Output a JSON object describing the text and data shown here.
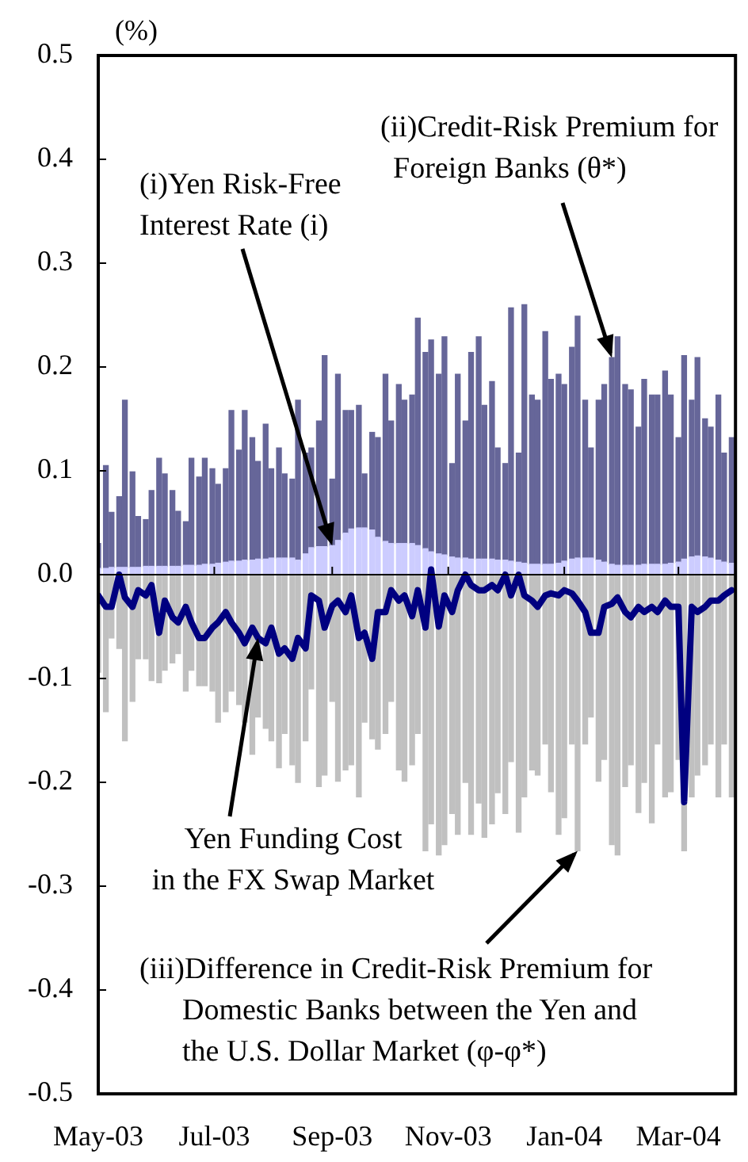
{
  "chart_data": {
    "type": "bar",
    "stacked": true,
    "ylabel": "(%)",
    "annotations": [
      {
        "text": "(i)Yen Risk-Free Interest Rate (i)",
        "x": "2003-09-01",
        "y": 0.028
      },
      {
        "text": "(ii)Credit-Risk Premium for Foreign Banks (θ*)",
        "x": "2004-01-26",
        "y": 0.209
      },
      {
        "text": "Yen Funding Cost in the FX Swap Market",
        "x": "2003-07-24",
        "y": -0.061
      },
      {
        "text": "(iii)Difference in Credit-Risk Premium for Domestic Banks between the Yen and the U.S. Dollar Market (φ-φ*)",
        "x": "2004-01-08",
        "y": -0.266
      }
    ],
    "x": [
      "2003-05-01",
      "2003-05-05",
      "2003-05-08",
      "2003-05-12",
      "2003-05-15",
      "2003-05-19",
      "2003-05-22",
      "2003-05-26",
      "2003-05-29",
      "2003-06-02",
      "2003-06-05",
      "2003-06-09",
      "2003-06-12",
      "2003-06-16",
      "2003-06-19",
      "2003-06-23",
      "2003-06-26",
      "2003-06-30",
      "2003-07-03",
      "2003-07-07",
      "2003-07-10",
      "2003-07-14",
      "2003-07-17",
      "2003-07-21",
      "2003-07-24",
      "2003-07-28",
      "2003-07-31",
      "2003-08-04",
      "2003-08-07",
      "2003-08-11",
      "2003-08-14",
      "2003-08-18",
      "2003-08-21",
      "2003-08-25",
      "2003-08-28",
      "2003-09-01",
      "2003-09-04",
      "2003-09-08",
      "2003-09-11",
      "2003-09-15",
      "2003-09-18",
      "2003-09-22",
      "2003-09-25",
      "2003-09-29",
      "2003-10-02",
      "2003-10-06",
      "2003-10-09",
      "2003-10-13",
      "2003-10-16",
      "2003-10-20",
      "2003-10-23",
      "2003-10-27",
      "2003-10-30",
      "2003-11-03",
      "2003-11-06",
      "2003-11-10",
      "2003-11-13",
      "2003-11-17",
      "2003-11-20",
      "2003-11-24",
      "2003-11-27",
      "2003-12-01",
      "2003-12-04",
      "2003-12-08",
      "2003-12-11",
      "2003-12-15",
      "2003-12-18",
      "2003-12-22",
      "2003-12-25",
      "2003-12-29",
      "2004-01-01",
      "2004-01-05",
      "2004-01-08",
      "2004-01-12",
      "2004-01-15",
      "2004-01-19",
      "2004-01-22",
      "2004-01-26",
      "2004-01-29",
      "2004-02-02",
      "2004-02-05",
      "2004-02-09",
      "2004-02-12",
      "2004-02-16",
      "2004-02-19",
      "2004-02-23",
      "2004-02-26",
      "2004-03-01",
      "2004-03-04",
      "2004-03-08",
      "2004-03-11",
      "2004-03-15",
      "2004-03-18",
      "2004-03-22",
      "2004-03-25",
      "2004-03-29"
    ],
    "series": [
      {
        "color": "#ccccff",
        "values": [
          0.006,
          0.006,
          0.007,
          0.007,
          0.007,
          0.007,
          0.007,
          0.008,
          0.008,
          0.008,
          0.008,
          0.008,
          0.008,
          0.009,
          0.009,
          0.009,
          0.01,
          0.01,
          0.011,
          0.012,
          0.013,
          0.013,
          0.014,
          0.014,
          0.015,
          0.015,
          0.016,
          0.016,
          0.016,
          0.016,
          0.014,
          0.02,
          0.026,
          0.027,
          0.027,
          0.028,
          0.033,
          0.04,
          0.044,
          0.045,
          0.045,
          0.043,
          0.036,
          0.032,
          0.03,
          0.03,
          0.03,
          0.03,
          0.028,
          0.025,
          0.022,
          0.02,
          0.019,
          0.017,
          0.016,
          0.016,
          0.015,
          0.015,
          0.015,
          0.015,
          0.014,
          0.014,
          0.013,
          0.012,
          0.011,
          0.01,
          0.01,
          0.01,
          0.01,
          0.011,
          0.013,
          0.015,
          0.016,
          0.016,
          0.016,
          0.014,
          0.012,
          0.01,
          0.009,
          0.009,
          0.009,
          0.009,
          0.01,
          0.01,
          0.01,
          0.01,
          0.011,
          0.012,
          0.015,
          0.017,
          0.018,
          0.017,
          0.016,
          0.014,
          0.012,
          0.011
        ]
      },
      {
        "color": "#666699",
        "values": [
          0.024,
          0.099,
          0.053,
          0.068,
          0.161,
          0.092,
          0.049,
          0.045,
          0.073,
          0.104,
          0.089,
          0.073,
          0.053,
          0.042,
          0.103,
          0.085,
          0.102,
          0.092,
          0.076,
          0.09,
          0.145,
          0.107,
          0.144,
          0.118,
          0.094,
          0.13,
          0.086,
          0.106,
          0.081,
          0.076,
          0.154,
          0.097,
          0.096,
          0.121,
          0.184,
          0.064,
          0.16,
          0.118,
          0.114,
          0.118,
          0.052,
          0.094,
          0.096,
          0.161,
          0.118,
          0.153,
          0.138,
          0.143,
          0.219,
          0.189,
          0.204,
          0.173,
          0.21,
          0.09,
          0.177,
          0.132,
          0.199,
          0.214,
          0.148,
          0.171,
          0.108,
          0.093,
          0.244,
          0.105,
          0.249,
          0.163,
          0.158,
          0.224,
          0.178,
          0.182,
          0.17,
          0.204,
          0.233,
          0.152,
          0.106,
          0.154,
          0.171,
          0.199,
          0.22,
          0.174,
          0.169,
          0.133,
          0.178,
          0.163,
          0.163,
          0.186,
          0.162,
          0.12,
          0.196,
          0.151,
          0.191,
          0.133,
          0.126,
          0.159,
          0.105,
          0.121
        ]
      },
      {
        "color": "#c0c0c0",
        "values": [
          -0.094,
          -0.132,
          -0.061,
          -0.071,
          -0.16,
          -0.122,
          -0.081,
          -0.081,
          -0.102,
          -0.104,
          -0.092,
          -0.085,
          -0.076,
          -0.112,
          -0.092,
          -0.107,
          -0.107,
          -0.112,
          -0.142,
          -0.132,
          -0.112,
          -0.125,
          -0.142,
          -0.173,
          -0.137,
          -0.148,
          -0.16,
          -0.186,
          -0.153,
          -0.183,
          -0.2,
          -0.16,
          -0.11,
          -0.204,
          -0.193,
          -0.122,
          -0.199,
          -0.188,
          -0.183,
          -0.214,
          -0.142,
          -0.158,
          -0.168,
          -0.153,
          -0.122,
          -0.188,
          -0.199,
          -0.183,
          -0.153,
          -0.266,
          -0.24,
          -0.27,
          -0.26,
          -0.23,
          -0.25,
          -0.2,
          -0.25,
          -0.22,
          -0.253,
          -0.24,
          -0.21,
          -0.23,
          -0.18,
          -0.248,
          -0.214,
          -0.188,
          -0.193,
          -0.163,
          -0.209,
          -0.25,
          -0.234,
          -0.163,
          -0.266,
          -0.163,
          -0.137,
          -0.199,
          -0.178,
          -0.26,
          -0.27,
          -0.204,
          -0.183,
          -0.229,
          -0.2,
          -0.239,
          -0.163,
          -0.214,
          -0.209,
          -0.178,
          -0.266,
          -0.214,
          -0.193,
          -0.183,
          -0.163,
          -0.214,
          -0.163,
          -0.214
        ]
      },
      {
        "type": "line",
        "color": "#000080",
        "values": [
          -0.02,
          -0.031,
          -0.031,
          0.0,
          -0.022,
          -0.031,
          -0.015,
          -0.02,
          -0.01,
          -0.056,
          -0.025,
          -0.041,
          -0.046,
          -0.031,
          -0.046,
          -0.061,
          -0.061,
          -0.051,
          -0.046,
          -0.036,
          -0.046,
          -0.056,
          -0.066,
          -0.051,
          -0.061,
          -0.066,
          -0.051,
          -0.076,
          -0.071,
          -0.081,
          -0.061,
          -0.071,
          -0.02,
          -0.025,
          -0.051,
          -0.03,
          -0.025,
          -0.036,
          -0.02,
          -0.061,
          -0.056,
          -0.081,
          -0.036,
          -0.036,
          -0.015,
          -0.025,
          -0.02,
          -0.04,
          -0.015,
          -0.051,
          0.005,
          -0.05,
          -0.02,
          -0.036,
          -0.015,
          0.0,
          -0.01,
          -0.015,
          -0.015,
          -0.01,
          -0.015,
          0.0,
          -0.02,
          0.0,
          -0.02,
          -0.025,
          -0.031,
          -0.02,
          -0.018,
          -0.02,
          -0.015,
          -0.018,
          -0.025,
          -0.036,
          -0.056,
          -0.056,
          -0.031,
          -0.028,
          -0.022,
          -0.036,
          -0.041,
          -0.031,
          -0.036,
          -0.031,
          -0.036,
          -0.025,
          -0.031,
          -0.031,
          -0.219,
          -0.031,
          -0.036,
          -0.031,
          -0.025,
          -0.025,
          -0.02,
          -0.015
        ]
      }
    ],
    "xlim": [
      "2003-05-01",
      "2004-03-31"
    ],
    "xticks": [
      {
        "value": "2003-05-01",
        "label": "May-03"
      },
      {
        "value": "2003-07-01",
        "label": "Jul-03"
      },
      {
        "value": "2003-09-01",
        "label": "Sep-03"
      },
      {
        "value": "2003-11-01",
        "label": "Nov-03"
      },
      {
        "value": "2004-01-01",
        "label": "Jan-04"
      },
      {
        "value": "2004-03-01",
        "label": "Mar-04"
      }
    ],
    "ylim": [
      -0.5,
      0.5
    ],
    "yticks": [
      -0.5,
      -0.4,
      -0.3,
      -0.2,
      -0.1,
      {
        "value": 0,
        "label": "0.0"
      },
      0.1,
      0.2,
      0.3,
      0.4,
      0.5
    ]
  }
}
